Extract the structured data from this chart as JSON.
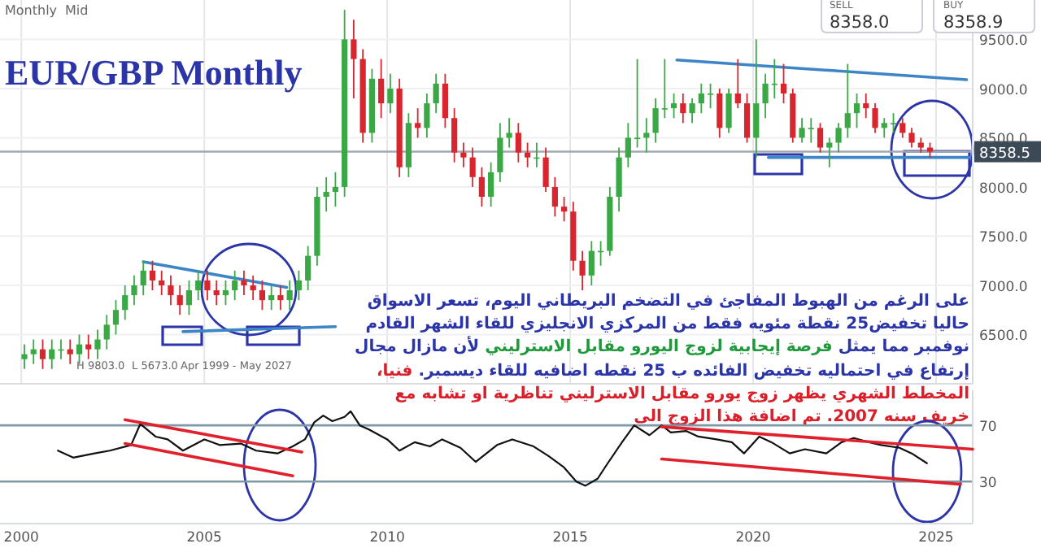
{
  "chart_data": [
    {
      "type": "candlestick",
      "title": "EUR/GBP Monthly",
      "xlim": [
        "1999-06",
        "2026-01"
      ],
      "xticks": [
        {
          "value": "2000",
          "label": null
        },
        {
          "value": "2005",
          "label": null
        },
        {
          "value": "2010",
          "label": null
        },
        {
          "value": "2015",
          "label": null
        },
        {
          "value": "2020",
          "label": null
        },
        {
          "value": "2025",
          "label": null
        }
      ],
      "ylim": [
        6000,
        9900
      ],
      "yticks": [
        {
          "value": 6500,
          "label": "6500.0"
        },
        {
          "value": 7000,
          "label": "7000.0"
        },
        {
          "value": 7500,
          "label": "7500.0"
        },
        {
          "value": 8000,
          "label": "8000.0"
        },
        {
          "value": 8500,
          "label": "8500.0"
        },
        {
          "value": 9000,
          "label": "9000.0"
        },
        {
          "value": 9500,
          "label": "9500.0"
        }
      ],
      "tick_labels": "y",
      "grid": true,
      "x": [
        "2000-02",
        "2000-05",
        "2000-08",
        "2000-11",
        "2001-02",
        "2001-05",
        "2001-08",
        "2001-11",
        "2002-02",
        "2002-05",
        "2002-08",
        "2002-11",
        "2003-02",
        "2003-05",
        "2003-08",
        "2003-11",
        "2004-02",
        "2004-05",
        "2004-08",
        "2004-11",
        "2005-02",
        "2005-05",
        "2005-08",
        "2005-11",
        "2006-02",
        "2006-05",
        "2006-08",
        "2006-11",
        "2007-02",
        "2007-05",
        "2007-08",
        "2007-11",
        "2008-02",
        "2008-05",
        "2008-08",
        "2008-11",
        "2009-02",
        "2009-05",
        "2009-08",
        "2009-11",
        "2010-02",
        "2010-05",
        "2010-08",
        "2010-11",
        "2011-02",
        "2011-05",
        "2011-08",
        "2011-11",
        "2012-02",
        "2012-05",
        "2012-08",
        "2012-11",
        "2013-02",
        "2013-05",
        "2013-08",
        "2013-11",
        "2014-02",
        "2014-05",
        "2014-08",
        "2014-11",
        "2015-02",
        "2015-05",
        "2015-08",
        "2015-11",
        "2016-02",
        "2016-05",
        "2016-08",
        "2016-11",
        "2017-02",
        "2017-05",
        "2017-08",
        "2017-11",
        "2018-02",
        "2018-05",
        "2018-08",
        "2018-11",
        "2019-02",
        "2019-05",
        "2019-08",
        "2019-11",
        "2020-02",
        "2020-05",
        "2020-08",
        "2020-11",
        "2021-02",
        "2021-05",
        "2021-08",
        "2021-11",
        "2022-02",
        "2022-05",
        "2022-08",
        "2022-11",
        "2023-02",
        "2023-05",
        "2023-08",
        "2023-11",
        "2024-02",
        "2024-05",
        "2024-08",
        "2024-11"
      ],
      "ohlc": [
        [
          6250,
          6400,
          6150,
          6300
        ],
        [
          6300,
          6450,
          6200,
          6350
        ],
        [
          6350,
          6450,
          6150,
          6250
        ],
        [
          6250,
          6450,
          6150,
          6350
        ],
        [
          6350,
          6450,
          6250,
          6350
        ],
        [
          6350,
          6450,
          6200,
          6300
        ],
        [
          6300,
          6500,
          6200,
          6400
        ],
        [
          6400,
          6500,
          6250,
          6350
        ],
        [
          6350,
          6550,
          6250,
          6450
        ],
        [
          6450,
          6700,
          6350,
          6600
        ],
        [
          6600,
          6850,
          6500,
          6750
        ],
        [
          6750,
          7000,
          6650,
          6900
        ],
        [
          6900,
          7100,
          6800,
          7000
        ],
        [
          7000,
          7250,
          6900,
          7150
        ],
        [
          7150,
          7250,
          6950,
          7050
        ],
        [
          7050,
          7150,
          6900,
          7000
        ],
        [
          7000,
          7100,
          6800,
          6900
        ],
        [
          6900,
          7000,
          6700,
          6800
        ],
        [
          6800,
          7050,
          6700,
          6950
        ],
        [
          6950,
          7150,
          6850,
          7050
        ],
        [
          7050,
          7150,
          6850,
          6950
        ],
        [
          6950,
          7050,
          6800,
          6900
        ],
        [
          6900,
          7050,
          6800,
          6950
        ],
        [
          6950,
          7150,
          6850,
          7050
        ],
        [
          7050,
          7150,
          6900,
          7000
        ],
        [
          7000,
          7100,
          6850,
          6950
        ],
        [
          6950,
          7050,
          6750,
          6850
        ],
        [
          6850,
          7000,
          6750,
          6900
        ],
        [
          6900,
          7000,
          6750,
          6850
        ],
        [
          6850,
          7050,
          6750,
          6950
        ],
        [
          6950,
          7150,
          6850,
          7050
        ],
        [
          7050,
          7400,
          6950,
          7300
        ],
        [
          7300,
          8000,
          7200,
          7900
        ],
        [
          7900,
          8100,
          7750,
          7950
        ],
        [
          7950,
          8150,
          7800,
          8000
        ],
        [
          8000,
          9800,
          7900,
          9500
        ],
        [
          9500,
          9700,
          8900,
          9300
        ],
        [
          9300,
          9400,
          8450,
          8550
        ],
        [
          8550,
          9200,
          8450,
          9100
        ],
        [
          9100,
          9300,
          8700,
          8850
        ],
        [
          8850,
          9150,
          8750,
          9000
        ],
        [
          9000,
          9100,
          8100,
          8200
        ],
        [
          8200,
          8750,
          8100,
          8650
        ],
        [
          8650,
          8800,
          8500,
          8600
        ],
        [
          8600,
          8950,
          8500,
          8850
        ],
        [
          8850,
          9150,
          8750,
          9050
        ],
        [
          9050,
          9150,
          8600,
          8700
        ],
        [
          8700,
          8800,
          8250,
          8350
        ],
        [
          8350,
          8450,
          8200,
          8300
        ],
        [
          8300,
          8400,
          8000,
          8100
        ],
        [
          8100,
          8200,
          7800,
          7900
        ],
        [
          7900,
          8250,
          7800,
          8150
        ],
        [
          8150,
          8650,
          8050,
          8500
        ],
        [
          8500,
          8700,
          8400,
          8550
        ],
        [
          8550,
          8650,
          8250,
          8350
        ],
        [
          8350,
          8450,
          8200,
          8300
        ],
        [
          8300,
          8450,
          8200,
          8300
        ],
        [
          8300,
          8400,
          7950,
          8000
        ],
        [
          8000,
          8100,
          7700,
          7800
        ],
        [
          7800,
          7900,
          7650,
          7750
        ],
        [
          7750,
          7850,
          7150,
          7250
        ],
        [
          7250,
          7350,
          6950,
          7100
        ],
        [
          7100,
          7450,
          7000,
          7350
        ],
        [
          7350,
          7450,
          7200,
          7350
        ],
        [
          7350,
          8000,
          7300,
          7900
        ],
        [
          7900,
          8400,
          7750,
          8300
        ],
        [
          8300,
          8650,
          8200,
          8500
        ],
        [
          8500,
          9300,
          8400,
          8500
        ],
        [
          8500,
          8700,
          8350,
          8550
        ],
        [
          8550,
          8900,
          8450,
          8800
        ],
        [
          8800,
          9300,
          8700,
          8800
        ],
        [
          8800,
          8950,
          8700,
          8850
        ],
        [
          8850,
          8950,
          8650,
          8750
        ],
        [
          8750,
          8900,
          8650,
          8850
        ],
        [
          8850,
          9050,
          8750,
          8950
        ],
        [
          8950,
          9050,
          8800,
          8950
        ],
        [
          8950,
          9000,
          8500,
          8600
        ],
        [
          8600,
          9000,
          8550,
          8950
        ],
        [
          8950,
          9300,
          8800,
          8850
        ],
        [
          8850,
          8950,
          8450,
          8500
        ],
        [
          8500,
          9500,
          8300,
          8850
        ],
        [
          8850,
          9150,
          8700,
          9050
        ],
        [
          9050,
          9300,
          8900,
          9050
        ],
        [
          9050,
          9250,
          8850,
          8950
        ],
        [
          8950,
          9000,
          8450,
          8500
        ],
        [
          8500,
          8700,
          8450,
          8600
        ],
        [
          8600,
          8700,
          8450,
          8600
        ],
        [
          8600,
          8650,
          8350,
          8400
        ],
        [
          8400,
          8500,
          8200,
          8450
        ],
        [
          8450,
          8650,
          8350,
          8600
        ],
        [
          8600,
          9250,
          8500,
          8750
        ],
        [
          8750,
          8950,
          8600,
          8850
        ],
        [
          8850,
          8950,
          8700,
          8800
        ],
        [
          8800,
          8850,
          8550,
          8600
        ],
        [
          8600,
          8700,
          8500,
          8650
        ],
        [
          8650,
          8750,
          8550,
          8650
        ],
        [
          8650,
          8700,
          8500,
          8550
        ],
        [
          8550,
          8600,
          8400,
          8450
        ],
        [
          8450,
          8500,
          8350,
          8400
        ],
        [
          8400,
          8450,
          8300,
          8358.5
        ]
      ],
      "series": [
        {
          "type": "line",
          "color": "#3d85c6",
          "x": [
            "2003-05",
            "2007-04"
          ],
          "values": [
            7240,
            6980
          ]
        },
        {
          "type": "line",
          "color": "#3d85c6",
          "x": [
            "2004-06",
            "2008-08"
          ],
          "values": [
            6530,
            6580
          ]
        },
        {
          "type": "line",
          "color": "#3d85c6",
          "x": [
            "2017-12",
            "2025-11"
          ],
          "values": [
            9290,
            9090
          ]
        },
        {
          "type": "line",
          "color": "#3d85c6",
          "x": [
            "2020-06",
            "2025-12"
          ],
          "values": [
            8300,
            8300
          ]
        }
      ],
      "ref_lines": [
        {
          "axis": "y",
          "value": 8358.5,
          "label": "8358.5",
          "color": "#a0a8b0"
        }
      ],
      "annotations": [
        "Monthly",
        "Mid",
        "SELL",
        "8358.0",
        "BUY",
        "8358.9",
        "H 9803.0",
        "L 5673.0",
        "Apr 1999 - May 2027",
        "على الرغم من الهبوط المفاجئ في التضخم البريطاني اليوم، تسعر الاسواق حاليا تخفيض25 نقطة مئويه فقط من المركزي الانجليزي للقاء الشهر القادم نوفمبر مما يمثل",
        "فرصة إيجابية لزوج اليورو مقابل الاسترليني",
        "لأن  مازال مجال إرتفاع في احتماليه تخفيض الفائده ب 25 نقطه اضافيه للقاء ديسمبر.",
        "فنيا، المخطط الشهري يظهر زوج يورو مقابل الاسترليني تناظرية او تشابه مع خريف سنه 2007. تم اضافة هذا الزوج الى"
      ]
    },
    {
      "type": "line",
      "xlim": [
        "1999-06",
        "2026-01"
      ],
      "xticks": [
        {
          "value": "2000",
          "label": "2000"
        },
        {
          "value": "2005",
          "label": "2005"
        },
        {
          "value": "2010",
          "label": "2010"
        },
        {
          "value": "2015",
          "label": "2015"
        },
        {
          "value": "2020",
          "label": "2020"
        },
        {
          "value": "2025",
          "label": "2025"
        }
      ],
      "ylim": [
        0,
        95
      ],
      "yticks": [
        30,
        70
      ],
      "ref_lines": [
        {
          "axis": "y",
          "value": 70,
          "color": "#7f98a6"
        },
        {
          "axis": "y",
          "value": 30,
          "color": "#7f98a6"
        }
      ],
      "series": [
        {
          "color": "#111111",
          "x": [
            "2001-01",
            "2001-06",
            "2002-01",
            "2002-06",
            "2003-01",
            "2003-04",
            "2003-09",
            "2004-01",
            "2004-06",
            "2005-01",
            "2005-06",
            "2006-01",
            "2006-06",
            "2007-01",
            "2007-06",
            "2007-10",
            "2008-01",
            "2008-04",
            "2008-07",
            "2008-11",
            "2009-01",
            "2009-04",
            "2009-07",
            "2010-01",
            "2010-05",
            "2010-10",
            "2011-03",
            "2011-07",
            "2012-01",
            "2012-06",
            "2013-01",
            "2013-06",
            "2014-01",
            "2014-06",
            "2014-11",
            "2015-03",
            "2015-06",
            "2015-10",
            "2016-01",
            "2016-06",
            "2016-10",
            "2017-03",
            "2017-07",
            "2017-10",
            "2018-03",
            "2018-07",
            "2019-01",
            "2019-06",
            "2019-10",
            "2020-03",
            "2020-07",
            "2021-01",
            "2021-06",
            "2022-01",
            "2022-06",
            "2022-10",
            "2023-03",
            "2023-07",
            "2024-01",
            "2024-05",
            "2024-10"
          ],
          "values": [
            52,
            47,
            50,
            52,
            56,
            71,
            62,
            60,
            52,
            60,
            56,
            57,
            52,
            50,
            55,
            60,
            72,
            77,
            73,
            76,
            80,
            70,
            67,
            60,
            52,
            58,
            55,
            60,
            54,
            44,
            56,
            60,
            55,
            48,
            40,
            30,
            27,
            32,
            42,
            58,
            70,
            63,
            70,
            65,
            66,
            62,
            60,
            58,
            50,
            62,
            58,
            50,
            53,
            50,
            58,
            61,
            58,
            56,
            54,
            50,
            43
          ]
        },
        {
          "color": "#e0202a",
          "x": [
            "2002-11",
            "2007-09"
          ],
          "values": [
            74,
            51
          ]
        },
        {
          "color": "#e0202a",
          "x": [
            "2002-11",
            "2007-06"
          ],
          "values": [
            57,
            34
          ]
        },
        {
          "color": "#e0202a",
          "x": [
            "2017-07",
            "2026-01"
          ],
          "values": [
            69,
            53
          ]
        },
        {
          "color": "#e0202a",
          "x": [
            "2017-07",
            "2025-09"
          ],
          "values": [
            46,
            28
          ]
        }
      ]
    }
  ]
}
